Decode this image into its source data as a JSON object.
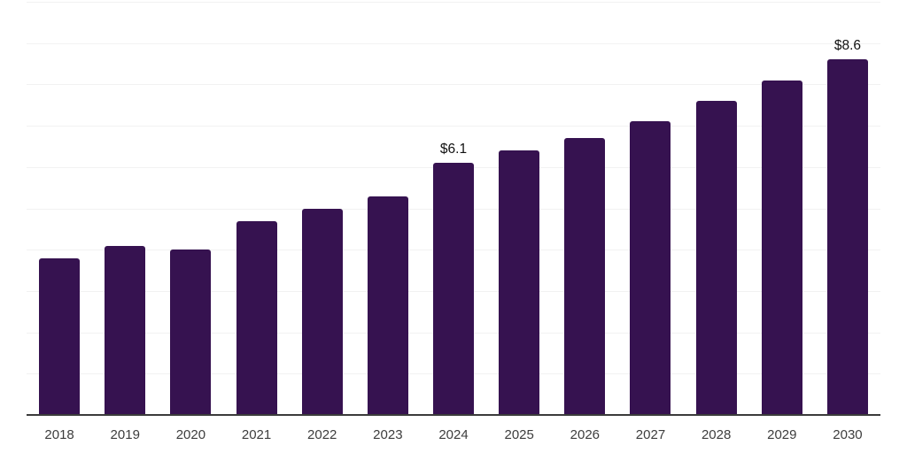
{
  "chart_data": {
    "type": "bar",
    "title": "",
    "xlabel": "",
    "ylabel": "",
    "categories": [
      "2018",
      "2019",
      "2020",
      "2021",
      "2022",
      "2023",
      "2024",
      "2025",
      "2026",
      "2027",
      "2028",
      "2029",
      "2030"
    ],
    "values": [
      3.8,
      4.1,
      4.0,
      4.7,
      5.0,
      5.3,
      6.1,
      6.4,
      6.7,
      7.1,
      7.6,
      8.1,
      8.6
    ],
    "data_labels": [
      "",
      "",
      "",
      "",
      "",
      "",
      "$6.1",
      "",
      "",
      "",
      "",
      "",
      "$8.6"
    ],
    "ylim": [
      0,
      10
    ],
    "gridline_step": 1,
    "grid": "horizontal-only",
    "legend_position": "none",
    "y_tick_labels_visible": false
  },
  "colors": {
    "background": "#ffffff",
    "bar": "#361250",
    "gridline": "#f2f2f2",
    "axis": "#3b3b3b",
    "year_label": "#3d3d3d",
    "value_label": "#111111"
  }
}
